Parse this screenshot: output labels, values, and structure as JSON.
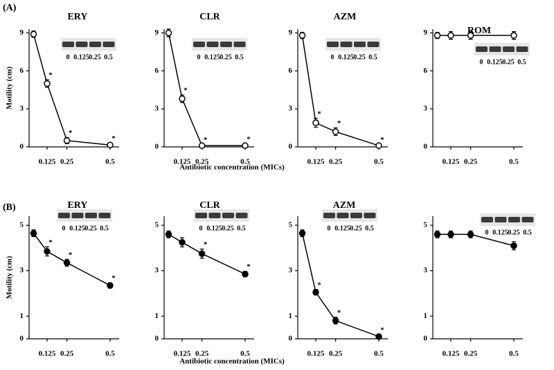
{
  "chart_data": [
    {
      "type": "line",
      "panel_label": "(A)",
      "title": "ERY",
      "ylabel": "Motility (cm)",
      "categories": [
        null,
        "0.125",
        "0.25",
        "0.5"
      ],
      "values": [
        8.9,
        5.0,
        0.5,
        0.15
      ],
      "errors": [
        0.25,
        0.3,
        0.25,
        0.15
      ],
      "markers": [
        null,
        "*",
        "*",
        "*"
      ],
      "marker": "open",
      "color": "#000000",
      "ylim": [
        0,
        9.3
      ],
      "yticks": [
        0,
        3,
        6,
        9
      ],
      "inset_labels": [
        "0",
        "0.125",
        "0.25",
        "0.5"
      ]
    },
    {
      "type": "line",
      "title": "CLR",
      "xlabel": "Antibiotic concentration (MICs)",
      "categories": [
        null,
        "0.125",
        "0.25",
        "0.5"
      ],
      "values": [
        9.0,
        3.8,
        0.1,
        0.1
      ],
      "errors": [
        0.3,
        0.3,
        0.1,
        0.15
      ],
      "markers": [
        null,
        "*",
        "*",
        "*"
      ],
      "marker": "open",
      "color": "#000000",
      "ylim": [
        0,
        9.3
      ],
      "yticks": [
        0,
        3,
        6,
        9
      ],
      "inset_labels": [
        "0",
        "0.125",
        "0.25",
        "0.5"
      ]
    },
    {
      "type": "line",
      "title": "AZM",
      "categories": [
        null,
        "0.125",
        "0.25",
        "0.5"
      ],
      "values": [
        8.8,
        1.9,
        1.2,
        0.1
      ],
      "errors": [
        0.25,
        0.35,
        0.3,
        0.1
      ],
      "markers": [
        null,
        "*",
        "*",
        "*"
      ],
      "marker": "open",
      "color": "#000000",
      "ylim": [
        0,
        9.3
      ],
      "yticks": [
        0,
        3,
        6,
        9
      ],
      "inset_labels": [
        "0",
        "0.125",
        "0.25",
        "0.5"
      ]
    },
    {
      "type": "line",
      "title": "ROM",
      "categories": [
        null,
        "0.125",
        "0.25",
        "0.5"
      ],
      "values": [
        8.8,
        8.8,
        8.8,
        8.8
      ],
      "errors": [
        0.25,
        0.3,
        0.3,
        0.3
      ],
      "markers": [
        null,
        null,
        null,
        null
      ],
      "marker": "open",
      "color": "#000000",
      "ylim": [
        0,
        9.3
      ],
      "yticks": [
        0,
        3,
        6,
        9
      ],
      "inset_labels": [
        "0",
        "0.125",
        "0.25",
        "0.5"
      ]
    },
    {
      "type": "line",
      "panel_label": "(B)",
      "title": "ERY",
      "ylabel": "Motility (cm)",
      "categories": [
        null,
        "0.125",
        "0.25",
        "0.5"
      ],
      "values": [
        4.65,
        3.85,
        3.35,
        2.35
      ],
      "errors": [
        0.15,
        0.2,
        0.15,
        0.12
      ],
      "markers": [
        null,
        "*",
        "*",
        "*"
      ],
      "marker": "filled",
      "color": "#000000",
      "ylim": [
        0,
        5.4
      ],
      "yticks": [
        0,
        1,
        3,
        5
      ],
      "inset_labels": [
        "0",
        "0.125",
        "0.25",
        "0.5"
      ]
    },
    {
      "type": "line",
      "title": "CLR",
      "xlabel": "Antibiotic concentration (MICs)",
      "categories": [
        null,
        "0.125",
        "0.25",
        "0.5"
      ],
      "values": [
        4.6,
        4.25,
        3.75,
        2.85
      ],
      "errors": [
        0.15,
        0.2,
        0.2,
        0.12
      ],
      "markers": [
        null,
        null,
        "*",
        "*"
      ],
      "marker": "filled",
      "color": "#000000",
      "ylim": [
        0,
        5.4
      ],
      "yticks": [
        0,
        1,
        3,
        5
      ],
      "inset_labels": [
        "0",
        "0.125",
        "0.25",
        "0.5"
      ]
    },
    {
      "type": "line",
      "title": "AZM",
      "categories": [
        null,
        "0.125",
        "0.25",
        "0.5"
      ],
      "values": [
        4.65,
        2.05,
        0.8,
        0.1
      ],
      "errors": [
        0.15,
        0.12,
        0.15,
        0.08
      ],
      "markers": [
        null,
        "*",
        "*",
        "*"
      ],
      "marker": "filled",
      "color": "#000000",
      "ylim": [
        0,
        5.4
      ],
      "yticks": [
        0,
        1,
        3,
        5
      ],
      "inset_labels": [
        "0",
        "0.125",
        "0.25",
        "0.5"
      ]
    },
    {
      "type": "line",
      "title": "ROM",
      "categories": [
        null,
        "0.125",
        "0.25",
        "0.5"
      ],
      "values": [
        4.6,
        4.6,
        4.6,
        4.1
      ],
      "errors": [
        0.15,
        0.15,
        0.15,
        0.18
      ],
      "markers": [
        null,
        null,
        null,
        null
      ],
      "marker": "filled",
      "color": "#000000",
      "ylim": [
        0,
        5.4
      ],
      "yticks": [
        0,
        1,
        3,
        5
      ],
      "inset_labels": [
        "0",
        "0.125",
        "0.25",
        "0.5"
      ]
    }
  ]
}
